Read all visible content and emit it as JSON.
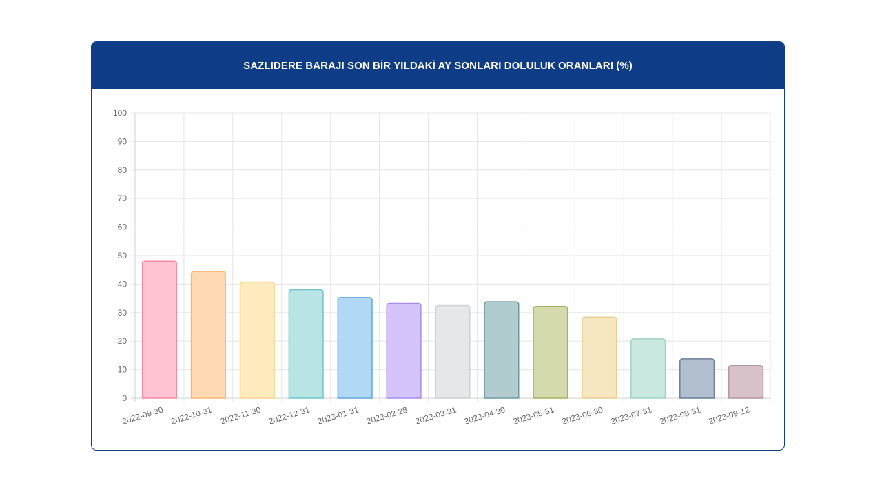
{
  "header": {
    "title": "SAZLIDERE BARAJI SON BİR YILDAKİ AY SONLARI DOLULUK ORANLARI (%)"
  },
  "chart_data": {
    "type": "bar",
    "title": "SAZLIDERE BARAJI SON BİR YILDAKİ AY SONLARI DOLULUK ORANLARI (%)",
    "categories": [
      "2022-09-30",
      "2022-10-31",
      "2022-11-30",
      "2022-12-31",
      "2023-01-31",
      "2023-02-28",
      "2023-03-31",
      "2023-04-30",
      "2023-05-31",
      "2023-06-30",
      "2023-07-31",
      "2023-08-31",
      "2023-09-12"
    ],
    "values": [
      48.0,
      44.4,
      40.7,
      38.0,
      35.3,
      33.2,
      32.5,
      33.8,
      32.2,
      28.4,
      20.8,
      13.8,
      11.4
    ],
    "ylim": [
      0,
      100
    ],
    "yticks": [
      0,
      10,
      20,
      30,
      40,
      50,
      60,
      70,
      80,
      90,
      100
    ],
    "xlabel": "",
    "ylabel": "",
    "grid": true,
    "legend": "none",
    "colors": {
      "fill": [
        "#ffc3d1",
        "#ffd9b3",
        "#ffebbd",
        "#b9e4e6",
        "#b1d8f5",
        "#d5c4fb",
        "#e6e7e9",
        "#b0cccf",
        "#d5d9ac",
        "#f7e7c1",
        "#c9e8df",
        "#b1bfcf",
        "#d6c2c8"
      ],
      "border": [
        "#f68ba4",
        "#f8b778",
        "#f6d48e",
        "#6fc7c9",
        "#5aa9df",
        "#a98bf0",
        "#cfd1d5",
        "#6f9aa0",
        "#a9b05d",
        "#e9cf8e",
        "#9fd4c4",
        "#6c7e9a",
        "#b6959f"
      ]
    }
  }
}
